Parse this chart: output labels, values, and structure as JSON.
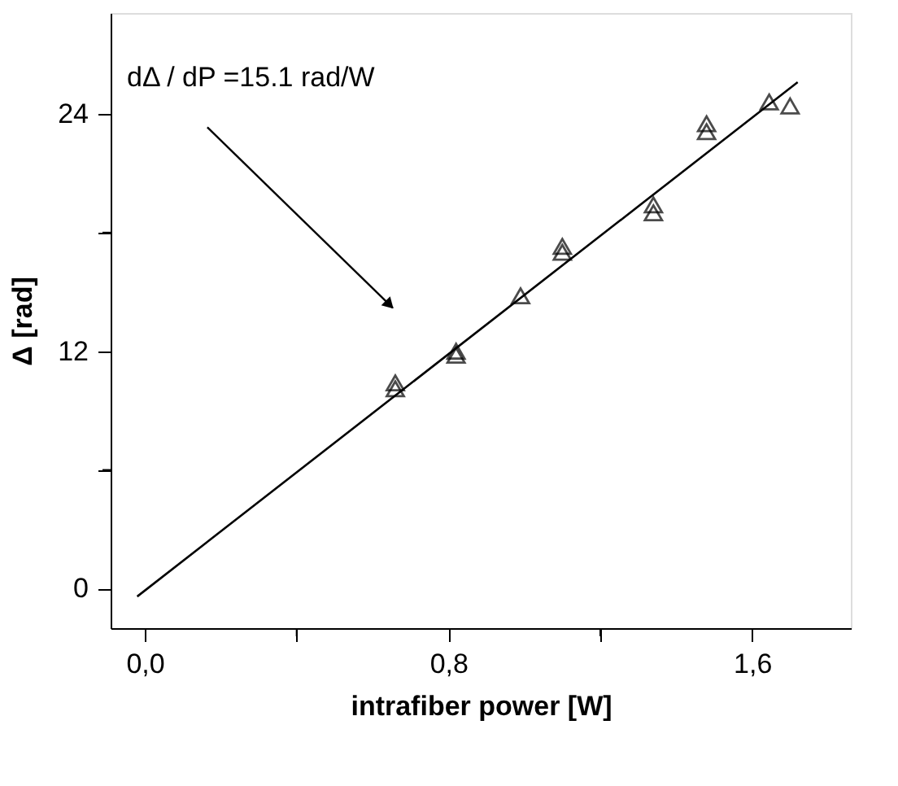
{
  "chart_data": {
    "type": "scatter",
    "xlabel": "intrafiber power [W]",
    "ylabel": "Δ [rad]",
    "annotations": [
      "dΔ / dP =15.1 rad/W"
    ],
    "xlim": [
      -0.09,
      1.86
    ],
    "ylim": [
      -2.0,
      29.1
    ],
    "xticks": [
      {
        "value": 0,
        "label": "0,0"
      },
      {
        "value": 0.4,
        "label": null
      },
      {
        "value": 0.8,
        "label": "0,8"
      },
      {
        "value": 1.2,
        "label": null
      },
      {
        "value": 1.6,
        "label": "1,6"
      }
    ],
    "yticks": [
      0,
      {
        "value": 6,
        "label": null
      },
      12,
      {
        "value": 18,
        "label": null
      },
      24
    ],
    "grid": false,
    "series": [
      {
        "marker": "triangle",
        "color": "#000000",
        "x": [
          0.66,
          0.66,
          0.82,
          0.82,
          0.99,
          1.1,
          1.1,
          1.34,
          1.34,
          1.48,
          1.48,
          1.645,
          1.7
        ],
        "values": [
          10.4,
          10.1,
          12.0,
          11.8,
          14.8,
          17.3,
          17.0,
          19.4,
          19.0,
          23.5,
          23.1,
          24.6,
          24.4
        ]
      },
      {
        "type": "line",
        "color": "#000000",
        "line_style": "solid",
        "x": [
          -0.02,
          1.72
        ],
        "values": [
          -0.4,
          25.6
        ]
      }
    ]
  }
}
